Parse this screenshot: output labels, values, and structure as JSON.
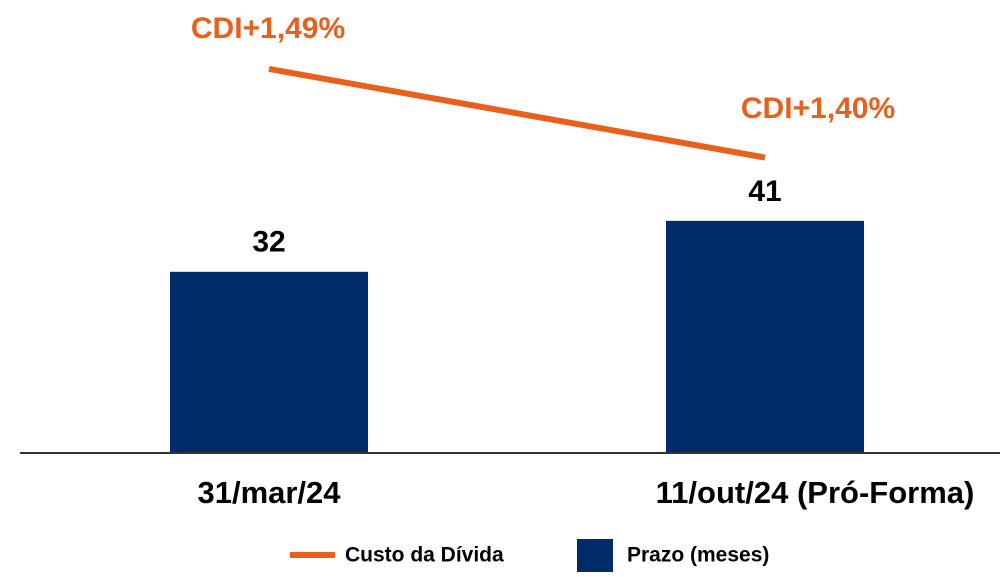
{
  "chart_data": {
    "type": "bar_line",
    "categories": [
      "31/mar/24",
      "11/out/24 (Pró-Forma)"
    ],
    "series": [
      {
        "name": "Prazo (meses)",
        "type": "bar",
        "color": "#002d6a",
        "values": [
          32,
          41
        ]
      },
      {
        "name": "Custo da Dívida",
        "type": "line",
        "axis": "y2",
        "color": "#e8601c",
        "values": [
          1.49,
          1.4
        ],
        "value_labels": [
          "CDI+1,49%",
          "CDI+1,40%"
        ]
      }
    ],
    "ylim": [
      0,
      80
    ],
    "y2lim": [
      1.1,
      1.56
    ],
    "legend": "bottom"
  }
}
